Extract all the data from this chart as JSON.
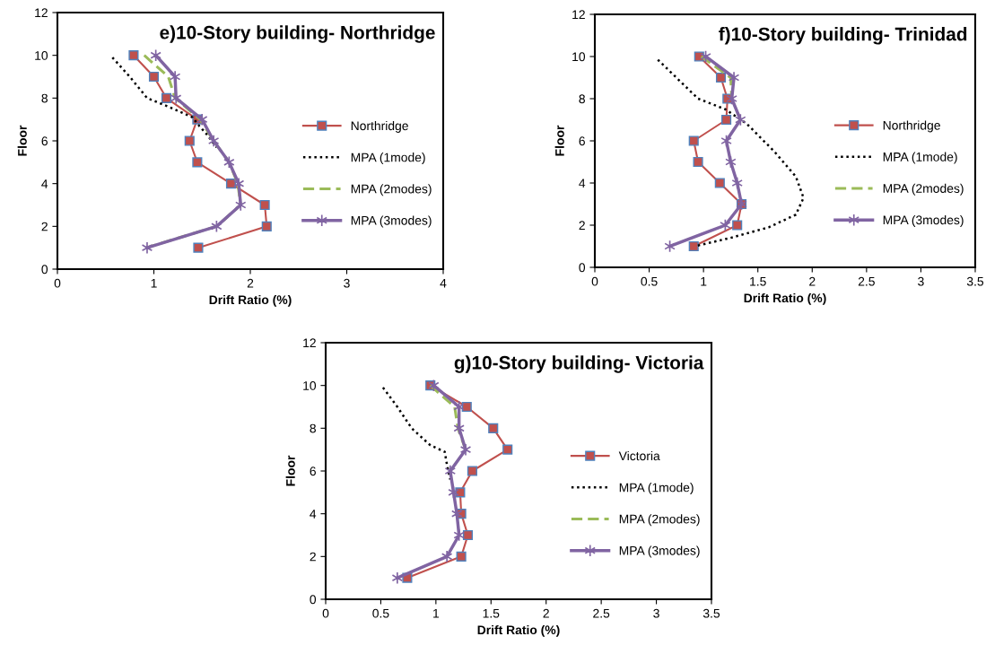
{
  "chart_data": [
    {
      "type": "line",
      "title": "e)10-Story building- Northridge",
      "xlabel": "Drift Ratio (%)",
      "ylabel": "Floor",
      "xlim": [
        0,
        4
      ],
      "xticks": [
        0,
        1,
        2,
        3,
        4
      ],
      "ylim": [
        0,
        12
      ],
      "yticks": [
        0,
        2,
        4,
        6,
        8,
        10,
        12
      ],
      "grid": false,
      "legend": "right",
      "series": [
        {
          "name": "Northridge",
          "color": "#c0504d",
          "marker": "square",
          "line_style": "solid",
          "x": [
            0.79,
            1.0,
            1.13,
            1.45,
            1.37,
            1.45,
            1.8,
            2.15,
            2.17,
            1.46
          ],
          "values": [
            10,
            9,
            8,
            7,
            6,
            5,
            4,
            3,
            2,
            1
          ]
        },
        {
          "name": "MPA (1mode)",
          "color": "#000000",
          "marker": "none",
          "line_style": "dotted",
          "x": [
            0.57,
            0.75,
            0.93,
            1.15,
            1.4,
            1.47,
            1.55,
            1.65
          ],
          "values": [
            9.9,
            9,
            8,
            7.6,
            7.1,
            6.7,
            6.3,
            5.7
          ]
        },
        {
          "name": "MPA (2modes)",
          "color": "#9bbb59",
          "marker": "none",
          "line_style": "dashed",
          "x": [
            0.9,
            1.15,
            1.22,
            1.48,
            1.62,
            1.78,
            1.87,
            1.9,
            1.65,
            0.92
          ],
          "values": [
            10,
            9,
            8,
            7,
            6,
            5,
            4,
            3,
            2,
            1
          ]
        },
        {
          "name": "MPA (3modes)",
          "color": "#8064a2",
          "marker": "cross",
          "line_style": "solid",
          "x": [
            1.02,
            1.22,
            1.23,
            1.5,
            1.62,
            1.78,
            1.88,
            1.9,
            1.65,
            0.93
          ],
          "values": [
            10,
            9,
            8,
            7,
            6,
            5,
            4,
            3,
            2,
            1
          ]
        }
      ]
    },
    {
      "type": "line",
      "title": "f)10-Story building- Trinidad",
      "xlabel": "Drift Ratio (%)",
      "ylabel": "Floor",
      "xlim": [
        0,
        3.5
      ],
      "xticks": [
        0,
        0.5,
        1,
        1.5,
        2,
        2.5,
        3,
        3.5
      ],
      "ylim": [
        0,
        12
      ],
      "yticks": [
        0,
        2,
        4,
        6,
        8,
        10,
        12
      ],
      "grid": false,
      "legend": "right",
      "series": [
        {
          "name": "Northridge",
          "color": "#c0504d",
          "marker": "square",
          "line_style": "solid",
          "x": [
            0.96,
            1.16,
            1.22,
            1.21,
            0.91,
            0.95,
            1.15,
            1.35,
            1.31,
            0.91
          ],
          "values": [
            10,
            9,
            8,
            7,
            6,
            5,
            4,
            3,
            2,
            1
          ]
        },
        {
          "name": "MPA (1mode)",
          "color": "#000000",
          "marker": "none",
          "line_style": "dotted",
          "x": [
            0.58,
            0.75,
            0.95,
            1.2,
            1.4,
            1.65,
            1.85,
            1.92,
            1.85,
            1.6,
            1.25,
            0.92
          ],
          "values": [
            9.85,
            9,
            8,
            7.5,
            6.8,
            5.5,
            4.3,
            3.3,
            2.5,
            1.9,
            1.4,
            1
          ]
        },
        {
          "name": "MPA (2modes)",
          "color": "#9bbb59",
          "marker": "none",
          "line_style": "dashed",
          "x": [
            0.98,
            1.25,
            1.26,
            null,
            null,
            null,
            null,
            null,
            null,
            null
          ],
          "values": [
            10,
            9,
            8,
            null,
            null,
            null,
            null,
            null,
            null,
            null
          ]
        },
        {
          "name": "MPA (3modes)",
          "color": "#8064a2",
          "marker": "cross",
          "line_style": "solid",
          "x": [
            1.02,
            1.28,
            1.26,
            1.34,
            1.21,
            1.25,
            1.31,
            1.35,
            1.2,
            0.69
          ],
          "values": [
            10,
            9,
            8,
            7,
            6,
            5,
            4,
            3,
            2,
            1
          ]
        }
      ]
    },
    {
      "type": "line",
      "title": "g)10-Story building- Victoria",
      "xlabel": "Drift Ratio (%)",
      "ylabel": "Floor",
      "xlim": [
        0,
        3.5
      ],
      "xticks": [
        0,
        0.5,
        1,
        1.5,
        2,
        2.5,
        3,
        3.5
      ],
      "ylim": [
        0,
        12
      ],
      "yticks": [
        0,
        2,
        4,
        6,
        8,
        10,
        12
      ],
      "grid": false,
      "legend": "right",
      "series": [
        {
          "name": "Victoria",
          "color": "#c0504d",
          "marker": "square",
          "line_style": "solid",
          "x": [
            0.95,
            1.28,
            1.52,
            1.65,
            1.33,
            1.22,
            1.23,
            1.29,
            1.23,
            0.74
          ],
          "values": [
            10,
            9,
            8,
            7,
            6,
            5,
            4,
            3,
            2,
            1
          ]
        },
        {
          "name": "MPA (1mode)",
          "color": "#000000",
          "marker": "none",
          "line_style": "dotted",
          "x": [
            0.52,
            0.65,
            0.78,
            0.95,
            1.08,
            1.1,
            1.13
          ],
          "values": [
            9.9,
            9,
            8,
            7.2,
            6.9,
            6.3,
            5.6
          ]
        },
        {
          "name": "MPA (2modes)",
          "color": "#9bbb59",
          "marker": "none",
          "line_style": "dashed",
          "x": [
            0.95,
            1.17,
            1.2,
            1.27,
            null,
            null,
            null,
            null,
            null,
            null
          ],
          "values": [
            10,
            9,
            8,
            7,
            null,
            null,
            null,
            null,
            null,
            null
          ]
        },
        {
          "name": "MPA (3modes)",
          "color": "#8064a2",
          "marker": "cross",
          "line_style": "solid",
          "x": [
            0.98,
            1.21,
            1.21,
            1.27,
            1.13,
            1.16,
            1.19,
            1.21,
            1.1,
            0.65
          ],
          "values": [
            10,
            9,
            8,
            7,
            6,
            5,
            4,
            3,
            2,
            1
          ]
        }
      ]
    }
  ]
}
